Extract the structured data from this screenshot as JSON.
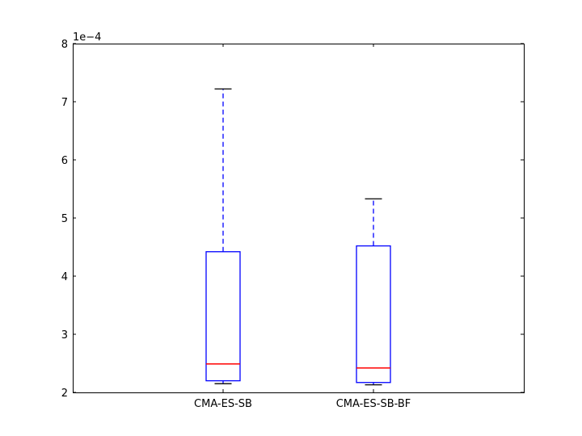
{
  "chart_data": {
    "type": "box",
    "title": "",
    "xlabel": "",
    "ylabel": "",
    "y_scale_label": "1e−4",
    "ylim": [
      2,
      8
    ],
    "yticks": [
      "2",
      "3",
      "4",
      "5",
      "6",
      "7",
      "8"
    ],
    "grid": false,
    "categories": [
      "CMA-ES-SB",
      "CMA-ES-SB-BF"
    ],
    "boxes": [
      {
        "whisker_low": 2.15,
        "q1": 2.2,
        "median": 2.49,
        "q3": 4.42,
        "whisker_high": 7.22
      },
      {
        "whisker_low": 2.13,
        "q1": 2.17,
        "median": 2.42,
        "q3": 4.52,
        "whisker_high": 5.33
      }
    ],
    "colors": {
      "box": "#0000ff",
      "median": "#ff0000",
      "cap": "#000000",
      "axes": "#000000"
    }
  }
}
